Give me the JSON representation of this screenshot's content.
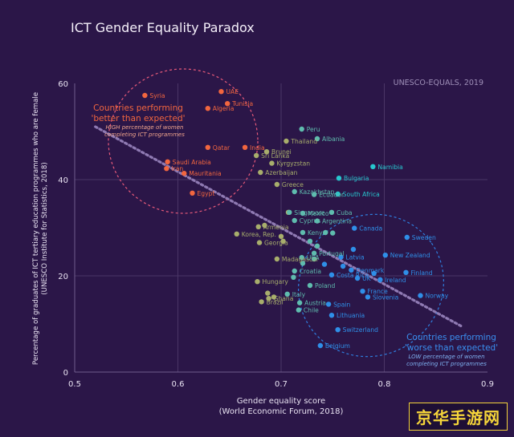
{
  "chart_data": {
    "type": "scatter",
    "title": "ICT Gender Equality Paradox",
    "source": "UNESCO-EQUALS, 2019",
    "xlabel": "Gender equality score",
    "xlabel_sub": "(World Economic Forum, 2018)",
    "ylabel": "Percentage of graduates of ICT tertiary education programmes who are female",
    "ylabel_sub": "(UNESCO Institute for Statistics, 2018)",
    "xlim": [
      0.5,
      0.9
    ],
    "ylim": [
      0,
      60
    ],
    "xticks": [
      0.5,
      0.6,
      0.7,
      0.8,
      0.9
    ],
    "yticks": [
      0,
      20,
      40,
      60
    ],
    "xtick_labels": [
      "0.5",
      "0.6",
      "0.7",
      "0.8",
      "0.9"
    ],
    "ytick_labels": [
      "0",
      "20",
      "40",
      "60"
    ],
    "trendline": [
      [
        0.52,
        51
      ],
      [
        0.875,
        9.5
      ]
    ],
    "annotations": {
      "better_title_1": "Countries performing",
      "better_title_2": "'better than expected'",
      "better_sub_1": "HIGH percentage of women",
      "better_sub_2": "completing ICT programmes",
      "worse_title_1": "Countries performing",
      "worse_title_2": "'worse than expected'",
      "worse_sub_1": "LOW percentage of women",
      "worse_sub_2": "completing ICT programmes"
    },
    "colors": {
      "background": "#2b1648",
      "grid": "#4a3566",
      "better": "#f2663f",
      "olive": "#a8ae6c",
      "teal": "#5fbcae",
      "cyan": "#27c7cf",
      "blue": "#2f8fe8",
      "trend": "#8f7ab3"
    },
    "points": [
      {
        "name": "Syria",
        "x": 0.568,
        "y": 57.5,
        "group": "better",
        "label": true
      },
      {
        "name": "UAE",
        "x": 0.642,
        "y": 58.3,
        "group": "better",
        "label": true
      },
      {
        "name": "Tunisia",
        "x": 0.648,
        "y": 55.8,
        "group": "better",
        "label": true
      },
      {
        "name": "Algeria",
        "x": 0.629,
        "y": 54.8,
        "group": "better",
        "label": true
      },
      {
        "name": "Qatar",
        "x": 0.629,
        "y": 46.7,
        "group": "better",
        "label": true
      },
      {
        "name": "India",
        "x": 0.665,
        "y": 46.7,
        "group": "better",
        "label": true
      },
      {
        "name": "Saudi Arabia",
        "x": 0.59,
        "y": 43.7,
        "group": "better",
        "label": true
      },
      {
        "name": "Iran",
        "x": 0.589,
        "y": 42.3,
        "group": "better",
        "label": true
      },
      {
        "name": "Mauritania",
        "x": 0.606,
        "y": 41.3,
        "group": "better",
        "label": true
      },
      {
        "name": "Egypt",
        "x": 0.614,
        "y": 37.2,
        "group": "better",
        "label": true
      },
      {
        "name": "Brunei",
        "x": 0.686,
        "y": 45.8,
        "group": "olive",
        "label": true
      },
      {
        "name": "Sri Lanka",
        "x": 0.676,
        "y": 45.0,
        "group": "olive",
        "label": true
      },
      {
        "name": "Azerbaijan",
        "x": 0.68,
        "y": 41.5,
        "group": "olive",
        "label": true
      },
      {
        "name": "Kyrgyzstan",
        "x": 0.691,
        "y": 43.4,
        "group": "olive",
        "label": true
      },
      {
        "name": "Thailand",
        "x": 0.705,
        "y": 48.0,
        "group": "olive",
        "label": true
      },
      {
        "name": "Armenia",
        "x": 0.678,
        "y": 30.2,
        "group": "olive",
        "label": true
      },
      {
        "name": "Korea, Rep.",
        "x": 0.657,
        "y": 28.7,
        "group": "olive",
        "label": true
      },
      {
        "name": "Georgia",
        "x": 0.679,
        "y": 26.9,
        "group": "olive",
        "label": true
      },
      {
        "name": "Hungary",
        "x": 0.677,
        "y": 18.8,
        "group": "olive",
        "label": true
      },
      {
        "name": "Brazil",
        "x": 0.681,
        "y": 14.6,
        "group": "olive",
        "label": true
      },
      {
        "name": "Greece",
        "x": 0.696,
        "y": 39.0,
        "group": "olive",
        "label": true
      },
      {
        "name": "Madagascar",
        "x": 0.696,
        "y": 23.5,
        "group": "olive",
        "label": true
      },
      {
        "name": "",
        "x": 0.684,
        "y": 30.5,
        "group": "olive",
        "label": false
      },
      {
        "name": "",
        "x": 0.687,
        "y": 16.4,
        "group": "olive",
        "label": false
      },
      {
        "name": "",
        "x": 0.693,
        "y": 15.6,
        "group": "olive",
        "label": false
      },
      {
        "name": "",
        "x": 0.702,
        "y": 27.2,
        "group": "olive",
        "label": false
      },
      {
        "name": "",
        "x": 0.7,
        "y": 28.2,
        "group": "olive",
        "label": false
      },
      {
        "name": "",
        "x": 0.707,
        "y": 33.2,
        "group": "olive",
        "label": false
      },
      {
        "name": "Ghana",
        "x": 0.688,
        "y": 15.3,
        "group": "olive",
        "label": true
      },
      {
        "name": "Peru",
        "x": 0.72,
        "y": 50.5,
        "group": "teal",
        "label": true
      },
      {
        "name": "Albania",
        "x": 0.735,
        "y": 48.5,
        "group": "teal",
        "label": true
      },
      {
        "name": "Kazakhstan",
        "x": 0.713,
        "y": 37.5,
        "group": "teal",
        "label": true
      },
      {
        "name": "Ecuador",
        "x": 0.732,
        "y": 36.9,
        "group": "teal",
        "label": true
      },
      {
        "name": "Singapore",
        "x": 0.708,
        "y": 33.2,
        "group": "teal",
        "label": true
      },
      {
        "name": "Cyprus",
        "x": 0.713,
        "y": 31.5,
        "group": "teal",
        "label": true
      },
      {
        "name": "Mexico",
        "x": 0.721,
        "y": 33.0,
        "group": "teal",
        "label": true
      },
      {
        "name": "Argentina",
        "x": 0.735,
        "y": 31.4,
        "group": "teal",
        "label": true
      },
      {
        "name": "Cuba",
        "x": 0.749,
        "y": 33.2,
        "group": "teal",
        "label": true
      },
      {
        "name": "Kenya",
        "x": 0.721,
        "y": 29.0,
        "group": "teal",
        "label": true
      },
      {
        "name": "USA",
        "x": 0.72,
        "y": 23.8,
        "group": "teal",
        "label": true
      },
      {
        "name": "Croatia",
        "x": 0.713,
        "y": 21.0,
        "group": "teal",
        "label": true
      },
      {
        "name": "Italy",
        "x": 0.706,
        "y": 16.2,
        "group": "teal",
        "label": true
      },
      {
        "name": "Austria",
        "x": 0.718,
        "y": 14.4,
        "group": "teal",
        "label": true
      },
      {
        "name": "Chile",
        "x": 0.717,
        "y": 12.9,
        "group": "teal",
        "label": true
      },
      {
        "name": "Poland",
        "x": 0.728,
        "y": 18.0,
        "group": "teal",
        "label": true
      },
      {
        "name": "Portugal",
        "x": 0.732,
        "y": 24.7,
        "group": "teal",
        "label": true
      },
      {
        "name": "",
        "x": 0.728,
        "y": 27.2,
        "group": "teal",
        "label": false
      },
      {
        "name": "",
        "x": 0.735,
        "y": 26.2,
        "group": "teal",
        "label": false
      },
      {
        "name": "",
        "x": 0.743,
        "y": 29.0,
        "group": "teal",
        "label": false
      },
      {
        "name": "",
        "x": 0.75,
        "y": 28.9,
        "group": "teal",
        "label": false
      },
      {
        "name": "",
        "x": 0.712,
        "y": 19.7,
        "group": "teal",
        "label": false
      },
      {
        "name": "",
        "x": 0.721,
        "y": 22.6,
        "group": "teal",
        "label": false
      },
      {
        "name": "",
        "x": 0.732,
        "y": 23.5,
        "group": "teal",
        "label": false
      },
      {
        "name": "Bulgaria",
        "x": 0.756,
        "y": 40.3,
        "group": "cyan",
        "label": true
      },
      {
        "name": "South Africa",
        "x": 0.755,
        "y": 37.0,
        "group": "cyan",
        "label": true
      },
      {
        "name": "Namibia",
        "x": 0.789,
        "y": 42.7,
        "group": "cyan",
        "label": true
      },
      {
        "name": "Canada",
        "x": 0.771,
        "y": 29.9,
        "group": "blue",
        "label": true
      },
      {
        "name": "Sweden",
        "x": 0.822,
        "y": 28.0,
        "group": "blue",
        "label": true
      },
      {
        "name": "New Zealand",
        "x": 0.801,
        "y": 24.3,
        "group": "blue",
        "label": true
      },
      {
        "name": "Finland",
        "x": 0.821,
        "y": 20.7,
        "group": "blue",
        "label": true
      },
      {
        "name": "Norway",
        "x": 0.835,
        "y": 15.9,
        "group": "blue",
        "label": true
      },
      {
        "name": "Latvia",
        "x": 0.758,
        "y": 23.9,
        "group": "blue",
        "label": true
      },
      {
        "name": "Denmark",
        "x": 0.768,
        "y": 21.2,
        "group": "blue",
        "label": true
      },
      {
        "name": "Costa Rica",
        "x": 0.749,
        "y": 20.2,
        "group": "blue",
        "label": true
      },
      {
        "name": "UK",
        "x": 0.774,
        "y": 19.5,
        "group": "blue",
        "label": true
      },
      {
        "name": "Ireland",
        "x": 0.796,
        "y": 19.2,
        "group": "blue",
        "label": true
      },
      {
        "name": "France",
        "x": 0.779,
        "y": 16.8,
        "group": "blue",
        "label": true
      },
      {
        "name": "Slovenia",
        "x": 0.784,
        "y": 15.6,
        "group": "blue",
        "label": true
      },
      {
        "name": "Spain",
        "x": 0.746,
        "y": 14.1,
        "group": "blue",
        "label": true
      },
      {
        "name": "Lithuania",
        "x": 0.749,
        "y": 11.8,
        "group": "blue",
        "label": true
      },
      {
        "name": "Switzerland",
        "x": 0.755,
        "y": 8.8,
        "group": "blue",
        "label": true
      },
      {
        "name": "Belgium",
        "x": 0.738,
        "y": 5.5,
        "group": "blue",
        "label": true
      },
      {
        "name": "",
        "x": 0.742,
        "y": 22.4,
        "group": "blue",
        "label": false
      },
      {
        "name": "",
        "x": 0.76,
        "y": 22.0,
        "group": "blue",
        "label": false
      },
      {
        "name": "",
        "x": 0.77,
        "y": 25.5,
        "group": "blue",
        "label": false
      },
      {
        "name": "",
        "x": 0.79,
        "y": 20.5,
        "group": "blue",
        "label": false
      }
    ]
  },
  "watermark": "京华手游网"
}
